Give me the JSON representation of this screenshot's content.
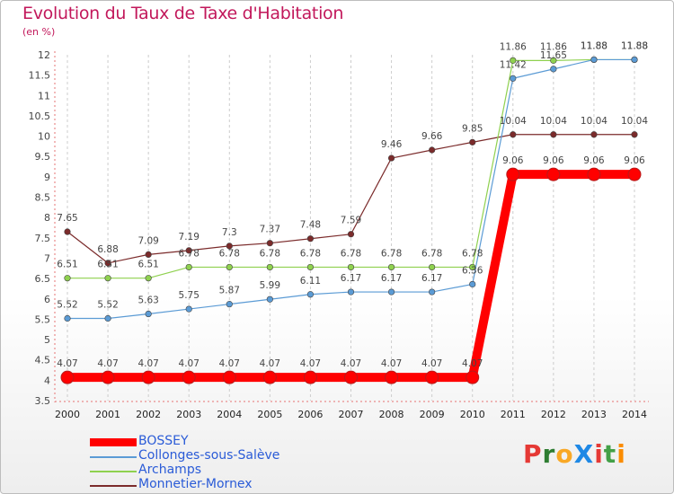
{
  "title": "Evolution du Taux de Taxe d'Habitation",
  "unit_label": "(en %)",
  "logo_text": "ProXiti",
  "logo_colors": [
    "#e53935",
    "#2e7d32",
    "#f9a825",
    "#1e88e5",
    "#e53935",
    "#43a047",
    "#fb8c00"
  ],
  "chart_data": {
    "type": "line",
    "title": "Evolution du Taux de Taxe d'Habitation",
    "ylabel": "(en %)",
    "xlabel": "",
    "ylim": [
      3.5,
      12
    ],
    "y_ticks": [
      "3.5",
      "4",
      "4.5",
      "5",
      "5.5",
      "6",
      "6.5",
      "7",
      "7.5",
      "8",
      "8.5",
      "9",
      "9.5",
      "10",
      "10.5",
      "11",
      "11.5",
      "12"
    ],
    "x": [
      "2000",
      "2001",
      "2002",
      "2003",
      "2004",
      "2005",
      "2006",
      "2007",
      "2008",
      "2009",
      "2010",
      "2011",
      "2012",
      "2013",
      "2014"
    ],
    "grid": "vertical dashed",
    "legend_position": "bottom-left",
    "series": [
      {
        "name": "BOSSEY",
        "color": "#ff0000",
        "values": [
          4.07,
          4.07,
          4.07,
          4.07,
          4.07,
          4.07,
          4.07,
          4.07,
          4.07,
          4.07,
          4.07,
          9.06,
          9.06,
          9.06,
          9.06
        ],
        "labels": [
          "4.07",
          "4.07",
          "4.07",
          "4.07",
          "4.07",
          "4.07",
          "4.07",
          "4.07",
          "4.07",
          "4.07",
          "4.07",
          "9.06",
          "9.06",
          "9.06",
          "9.06"
        ]
      },
      {
        "name": "Collonges-sous-Salève",
        "color": "#5b9bd5",
        "values": [
          5.52,
          5.52,
          5.63,
          5.75,
          5.87,
          5.99,
          6.11,
          6.17,
          6.17,
          6.17,
          6.36,
          11.42,
          11.65,
          11.88,
          11.88
        ],
        "labels": [
          "5.52",
          "5.52",
          "5.63",
          "5.75",
          "5.87",
          "5.99",
          "6.11",
          "6.17",
          "6.17",
          "6.17",
          "6.36",
          "11.42",
          "11.65",
          "11.88",
          "11.88"
        ]
      },
      {
        "name": "Archamps",
        "color": "#8fd14f",
        "values": [
          6.51,
          6.51,
          6.51,
          6.78,
          6.78,
          6.78,
          6.78,
          6.78,
          6.78,
          6.78,
          6.78,
          11.86,
          11.86,
          11.88,
          11.88
        ],
        "labels": [
          "6.51",
          "6.51",
          "6.51",
          "6.78",
          "6.78",
          "6.78",
          "6.78",
          "6.78",
          "6.78",
          "6.78",
          "6.78",
          "11.86",
          "11.86",
          "11.88",
          "11.88"
        ]
      },
      {
        "name": "Monnetier-Mornex",
        "color": "#7b2b2b",
        "values": [
          7.65,
          6.88,
          7.09,
          7.19,
          7.3,
          7.37,
          7.48,
          7.59,
          9.46,
          9.66,
          9.85,
          10.04,
          10.04,
          10.04,
          10.04
        ],
        "labels": [
          "7.65",
          "6.88",
          "7.09",
          "7.19",
          "7.3",
          "7.37",
          "7.48",
          "7.59",
          "9.46",
          "9.66",
          "9.85",
          "10.04",
          "10.04",
          "10.04",
          "10.04"
        ]
      }
    ]
  }
}
